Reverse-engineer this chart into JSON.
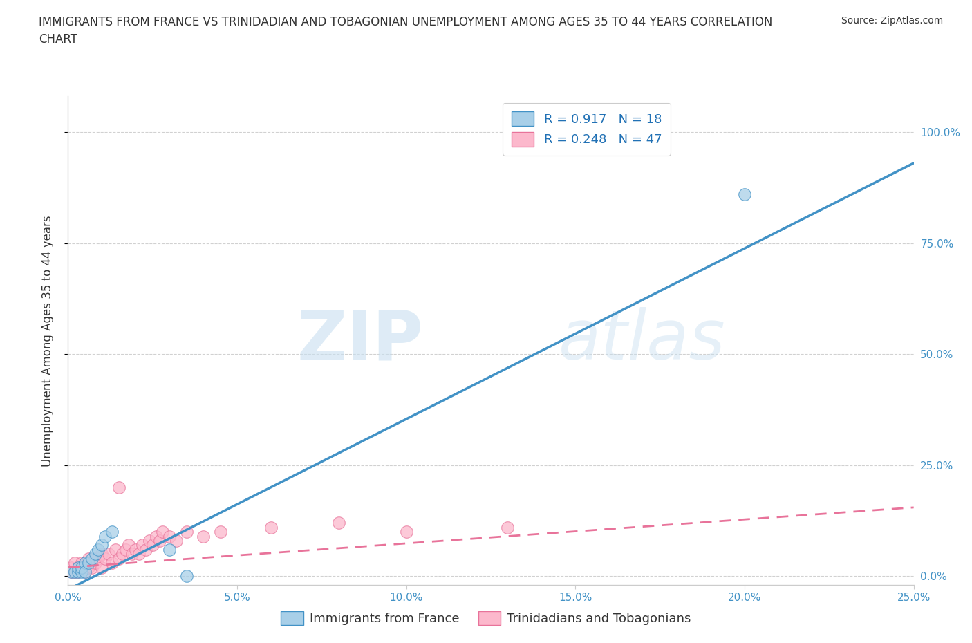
{
  "title_line1": "IMMIGRANTS FROM FRANCE VS TRINIDADIAN AND TOBAGONIAN UNEMPLOYMENT AMONG AGES 35 TO 44 YEARS CORRELATION",
  "title_line2": "CHART",
  "source": "Source: ZipAtlas.com",
  "ylabel": "Unemployment Among Ages 35 to 44 years",
  "xlabel": "",
  "xlim": [
    0.0,
    0.25
  ],
  "ylim": [
    -0.02,
    1.08
  ],
  "yticks": [
    0.0,
    0.25,
    0.5,
    0.75,
    1.0
  ],
  "xticks": [
    0.0,
    0.05,
    0.1,
    0.15,
    0.2,
    0.25
  ],
  "xtick_labels": [
    "0.0%",
    "5.0%",
    "10.0%",
    "15.0%",
    "20.0%",
    "25.0%"
  ],
  "ytick_labels": [
    "0.0%",
    "25.0%",
    "50.0%",
    "75.0%",
    "100.0%"
  ],
  "france_color": "#a8cfe8",
  "france_edge": "#4292c6",
  "trinidad_color": "#fcb8cc",
  "trinidad_edge": "#e8739a",
  "france_R": 0.917,
  "france_N": 18,
  "trinidad_R": 0.248,
  "trinidad_N": 47,
  "watermark_zip": "ZIP",
  "watermark_atlas": "atlas",
  "france_line_x": [
    0.0,
    0.25
  ],
  "france_line_y": [
    -0.03,
    0.93
  ],
  "trinidad_line_x": [
    0.0,
    0.25
  ],
  "trinidad_line_y": [
    0.02,
    0.155
  ],
  "france_x": [
    0.001,
    0.002,
    0.003,
    0.003,
    0.004,
    0.004,
    0.005,
    0.005,
    0.006,
    0.007,
    0.008,
    0.009,
    0.01,
    0.011,
    0.013,
    0.03,
    0.035,
    0.2
  ],
  "france_y": [
    0.01,
    0.01,
    0.01,
    0.02,
    0.01,
    0.02,
    0.03,
    0.01,
    0.03,
    0.04,
    0.05,
    0.06,
    0.07,
    0.09,
    0.1,
    0.06,
    0.0,
    0.86
  ],
  "trinidad_x": [
    0.001,
    0.001,
    0.002,
    0.002,
    0.003,
    0.003,
    0.004,
    0.004,
    0.005,
    0.005,
    0.006,
    0.006,
    0.007,
    0.007,
    0.008,
    0.008,
    0.009,
    0.01,
    0.01,
    0.011,
    0.012,
    0.013,
    0.014,
    0.015,
    0.015,
    0.016,
    0.017,
    0.018,
    0.019,
    0.02,
    0.021,
    0.022,
    0.023,
    0.024,
    0.025,
    0.026,
    0.027,
    0.028,
    0.03,
    0.032,
    0.035,
    0.04,
    0.045,
    0.06,
    0.08,
    0.1,
    0.13
  ],
  "trinidad_y": [
    0.01,
    0.02,
    0.01,
    0.03,
    0.02,
    0.01,
    0.02,
    0.03,
    0.01,
    0.03,
    0.02,
    0.04,
    0.03,
    0.02,
    0.04,
    0.03,
    0.04,
    0.02,
    0.05,
    0.04,
    0.05,
    0.03,
    0.06,
    0.04,
    0.2,
    0.05,
    0.06,
    0.07,
    0.05,
    0.06,
    0.05,
    0.07,
    0.06,
    0.08,
    0.07,
    0.09,
    0.08,
    0.1,
    0.09,
    0.08,
    0.1,
    0.09,
    0.1,
    0.11,
    0.12,
    0.1,
    0.11
  ],
  "background_color": "#ffffff",
  "grid_color": "#cccccc",
  "axis_color": "#cccccc",
  "text_color": "#333333",
  "blue_text": "#4292c6",
  "pink_text": "#e8739a",
  "legend_label_color": "#2171b5"
}
